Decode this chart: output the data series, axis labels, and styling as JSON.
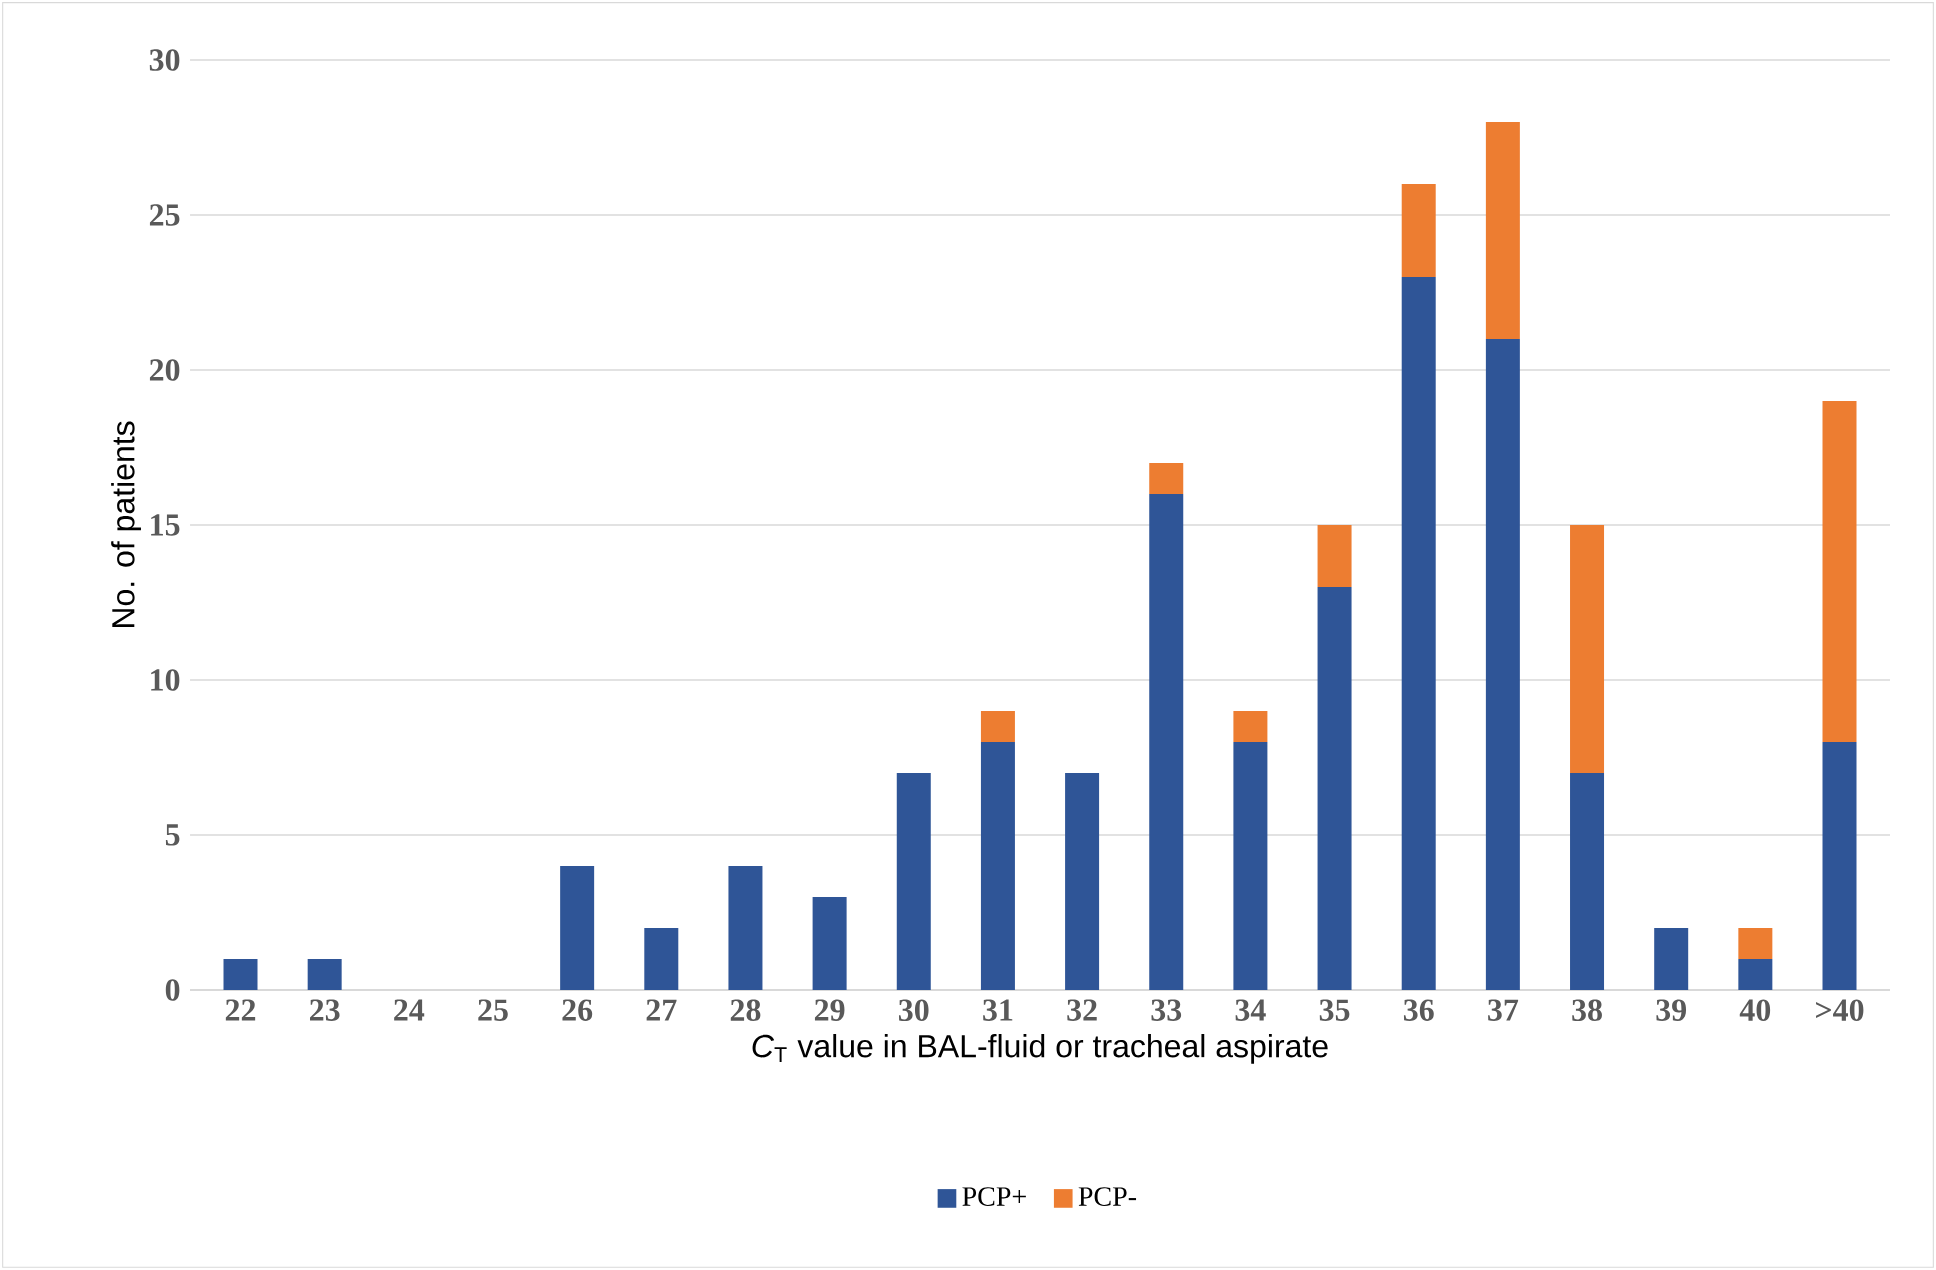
{
  "chart_data": {
    "type": "bar",
    "stacked": true,
    "xlabel": "*C*$_{T}$ value in BAL-fluid or tracheal aspirate",
    "ylabel": "No. of patients",
    "categories": [
      "22",
      "23",
      "24",
      "25",
      "26",
      "27",
      "28",
      "29",
      "30",
      "31",
      "32",
      "33",
      "34",
      "35",
      "36",
      "37",
      "38",
      "39",
      "40",
      ">40"
    ],
    "series": [
      {
        "name": "PCP+",
        "color": "#2f5597",
        "values": [
          1,
          1,
          0,
          0,
          4,
          2,
          4,
          3,
          7,
          8,
          7,
          16,
          8,
          13,
          23,
          21,
          7,
          2,
          1,
          8
        ]
      },
      {
        "name": "PCP-",
        "color": "#ed7d31",
        "values": [
          0,
          0,
          0,
          0,
          0,
          0,
          0,
          0,
          0,
          1,
          0,
          1,
          1,
          2,
          3,
          7,
          8,
          0,
          1,
          11
        ]
      }
    ],
    "ylim": [
      0,
      30
    ],
    "yticks": [
      0,
      5,
      10,
      15,
      20,
      25,
      30
    ],
    "grid": "y",
    "legend": "bottom"
  }
}
